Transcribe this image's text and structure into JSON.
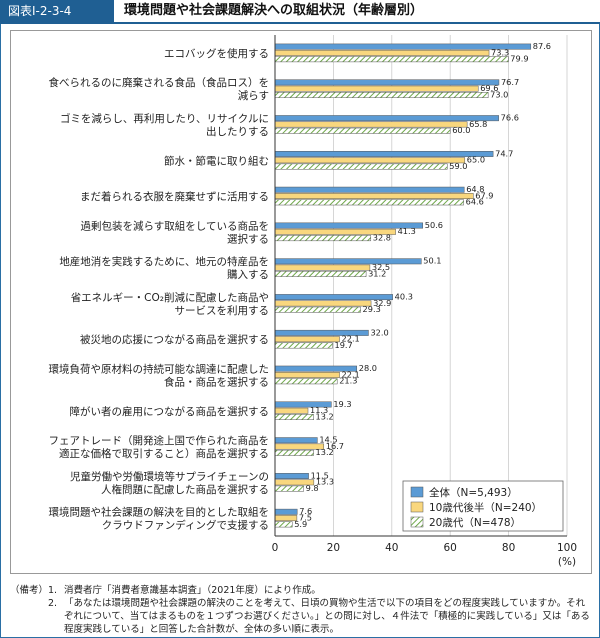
{
  "figure": {
    "tag": "図表Ⅰ-2-3-4",
    "title": "環境問題や社会課題解決への取組状況（年齢層別）"
  },
  "chart_data": {
    "type": "bar",
    "orientation": "horizontal",
    "categories": [
      [
        "エコバッグを使用する"
      ],
      [
        "食べられるのに廃棄される食品（食品ロス）を",
        "減らす"
      ],
      [
        "ゴミを減らし、再利用したり、リサイクルに",
        "出したりする"
      ],
      [
        "節水・節電に取り組む"
      ],
      [
        "まだ着られる衣服を廃棄せずに活用する"
      ],
      [
        "過剰包装を減らす取組をしている商品を",
        "選択する"
      ],
      [
        "地産地消を実践するために、地元の特産品を",
        "購入する"
      ],
      [
        "省エネルギー・CO₂削減に配慮した商品や",
        "サービスを利用する"
      ],
      [
        "被災地の応援につながる商品を選択する"
      ],
      [
        "環境負荷や原材料の持続可能な調達に配慮した",
        "食品・商品を選択する"
      ],
      [
        "障がい者の雇用につながる商品を選択する"
      ],
      [
        "フェアトレード（開発途上国で作られた商品を",
        "適正な価格で取引すること）商品を選択する"
      ],
      [
        "児童労働や労働環境等サプライチェーンの",
        "人権問題に配慮した商品を選択する"
      ],
      [
        "環境問題や社会課題の解決を目的とした取組を",
        "クラウドファンディングで支援する"
      ]
    ],
    "series": [
      {
        "name": "全体（N=5,493）",
        "color": "#5b9bd5",
        "pattern": "solid",
        "values": [
          87.6,
          76.7,
          76.6,
          74.7,
          64.8,
          50.6,
          50.1,
          40.3,
          32.0,
          28.0,
          19.3,
          14.5,
          11.5,
          7.6
        ]
      },
      {
        "name": "10歳代後半（N=240）",
        "color": "#f9d77e",
        "pattern": "solid",
        "values": [
          73.3,
          69.6,
          65.8,
          65.0,
          67.9,
          41.3,
          32.5,
          32.9,
          22.1,
          22.1,
          11.3,
          16.7,
          13.3,
          7.5
        ]
      },
      {
        "name": "20歳代（N=478）",
        "color": "#8cc063",
        "pattern": "hatch",
        "values": [
          79.9,
          73.0,
          60.0,
          59.0,
          64.6,
          32.8,
          31.2,
          29.3,
          19.7,
          21.3,
          13.2,
          13.2,
          9.8,
          5.9
        ]
      }
    ],
    "xlim": [
      0,
      100
    ],
    "xticks": [
      0,
      20,
      40,
      60,
      80,
      100
    ],
    "xlabel": "(%)",
    "legend_position": "bottom-right"
  },
  "notes": {
    "head": "（備考）",
    "items": [
      {
        "num": "1.",
        "text": "消費者庁「消費者意識基本調査」（2021年度）により作成。"
      },
      {
        "num": "2.",
        "text": "「あなたは環境問題や社会課題の解決のことを考えて、日頃の買物や生活で以下の項目をどの程度実践していますか。それぞれについて、当てはまるものを１つずつお選びください。」との問に対し、４件法で「積極的に実践している」又は「ある程度実践している」と回答した合計数が、全体の多い順に表示。"
      }
    ]
  }
}
